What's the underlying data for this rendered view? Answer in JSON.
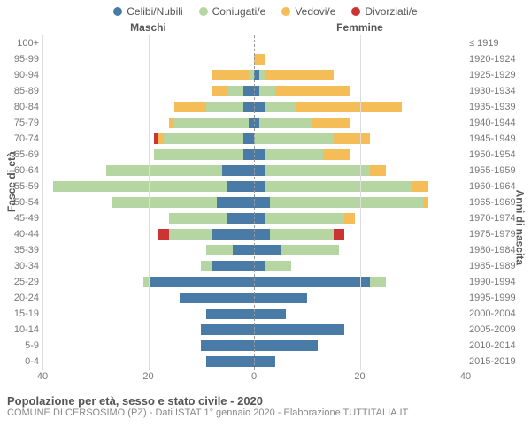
{
  "legend": [
    {
      "label": "Celibi/Nubili",
      "color": "#4a7ba6"
    },
    {
      "label": "Coniugati/e",
      "color": "#b5d6a2"
    },
    {
      "label": "Vedovi/e",
      "color": "#f4bd57"
    },
    {
      "label": "Divorziati/e",
      "color": "#cc3333"
    }
  ],
  "header_male": "Maschi",
  "header_female": "Femmine",
  "y_left_title": "Fasce di età",
  "y_right_title": "Anni di nascita",
  "title": "Popolazione per età, sesso e stato civile - 2020",
  "subtitle": "COMUNE DI CERSOSIMO (PZ) - Dati ISTAT 1° gennaio 2020 - Elaborazione TUTTITALIA.IT",
  "x_max": 40,
  "x_ticks": [
    40,
    20,
    0,
    20,
    40
  ],
  "colors": {
    "celibi": "#4a7ba6",
    "coniugati": "#b5d6a2",
    "vedovi": "#f4bd57",
    "divorziati": "#cc3333",
    "grid": "#dddddd",
    "center": "#999999",
    "text": "#777777"
  },
  "rows": [
    {
      "age": "100+",
      "year": "≤ 1919",
      "m": {
        "c": 0,
        "k": 0,
        "v": 0,
        "d": 0
      },
      "f": {
        "c": 0,
        "k": 0,
        "v": 0,
        "d": 0
      }
    },
    {
      "age": "95-99",
      "year": "1920-1924",
      "m": {
        "c": 0,
        "k": 0,
        "v": 0,
        "d": 0
      },
      "f": {
        "c": 0,
        "k": 0,
        "v": 2,
        "d": 0
      }
    },
    {
      "age": "90-94",
      "year": "1925-1929",
      "m": {
        "c": 0,
        "k": 1,
        "v": 7,
        "d": 0
      },
      "f": {
        "c": 1,
        "k": 1,
        "v": 13,
        "d": 0
      }
    },
    {
      "age": "85-89",
      "year": "1930-1934",
      "m": {
        "c": 2,
        "k": 3,
        "v": 3,
        "d": 0
      },
      "f": {
        "c": 1,
        "k": 3,
        "v": 14,
        "d": 0
      }
    },
    {
      "age": "80-84",
      "year": "1935-1939",
      "m": {
        "c": 2,
        "k": 7,
        "v": 6,
        "d": 0
      },
      "f": {
        "c": 2,
        "k": 6,
        "v": 20,
        "d": 0
      }
    },
    {
      "age": "75-79",
      "year": "1940-1944",
      "m": {
        "c": 1,
        "k": 14,
        "v": 1,
        "d": 0
      },
      "f": {
        "c": 1,
        "k": 10,
        "v": 7,
        "d": 0
      }
    },
    {
      "age": "70-74",
      "year": "1945-1949",
      "m": {
        "c": 2,
        "k": 15,
        "v": 1,
        "d": 1
      },
      "f": {
        "c": 0,
        "k": 15,
        "v": 7,
        "d": 0
      }
    },
    {
      "age": "65-69",
      "year": "1950-1954",
      "m": {
        "c": 2,
        "k": 17,
        "v": 0,
        "d": 0
      },
      "f": {
        "c": 2,
        "k": 11,
        "v": 5,
        "d": 0
      }
    },
    {
      "age": "60-64",
      "year": "1955-1959",
      "m": {
        "c": 6,
        "k": 22,
        "v": 0,
        "d": 0
      },
      "f": {
        "c": 2,
        "k": 20,
        "v": 3,
        "d": 0
      }
    },
    {
      "age": "55-59",
      "year": "1960-1964",
      "m": {
        "c": 5,
        "k": 33,
        "v": 0,
        "d": 0
      },
      "f": {
        "c": 2,
        "k": 28,
        "v": 3,
        "d": 0
      }
    },
    {
      "age": "50-54",
      "year": "1965-1969",
      "m": {
        "c": 7,
        "k": 20,
        "v": 0,
        "d": 0
      },
      "f": {
        "c": 3,
        "k": 29,
        "v": 1,
        "d": 0
      }
    },
    {
      "age": "45-49",
      "year": "1970-1974",
      "m": {
        "c": 5,
        "k": 11,
        "v": 0,
        "d": 0
      },
      "f": {
        "c": 2,
        "k": 15,
        "v": 2,
        "d": 0
      }
    },
    {
      "age": "40-44",
      "year": "1975-1979",
      "m": {
        "c": 8,
        "k": 8,
        "v": 0,
        "d": 2
      },
      "f": {
        "c": 3,
        "k": 12,
        "v": 0,
        "d": 2
      }
    },
    {
      "age": "35-39",
      "year": "1980-1984",
      "m": {
        "c": 4,
        "k": 5,
        "v": 0,
        "d": 0
      },
      "f": {
        "c": 5,
        "k": 11,
        "v": 0,
        "d": 0
      }
    },
    {
      "age": "30-34",
      "year": "1985-1989",
      "m": {
        "c": 8,
        "k": 2,
        "v": 0,
        "d": 0
      },
      "f": {
        "c": 2,
        "k": 5,
        "v": 0,
        "d": 0
      }
    },
    {
      "age": "25-29",
      "year": "1990-1994",
      "m": {
        "c": 20,
        "k": 1,
        "v": 0,
        "d": 0
      },
      "f": {
        "c": 22,
        "k": 3,
        "v": 0,
        "d": 0
      }
    },
    {
      "age": "20-24",
      "year": "1995-1999",
      "m": {
        "c": 14,
        "k": 0,
        "v": 0,
        "d": 0
      },
      "f": {
        "c": 10,
        "k": 0,
        "v": 0,
        "d": 0
      }
    },
    {
      "age": "15-19",
      "year": "2000-2004",
      "m": {
        "c": 9,
        "k": 0,
        "v": 0,
        "d": 0
      },
      "f": {
        "c": 6,
        "k": 0,
        "v": 0,
        "d": 0
      }
    },
    {
      "age": "10-14",
      "year": "2005-2009",
      "m": {
        "c": 10,
        "k": 0,
        "v": 0,
        "d": 0
      },
      "f": {
        "c": 17,
        "k": 0,
        "v": 0,
        "d": 0
      }
    },
    {
      "age": "5-9",
      "year": "2010-2014",
      "m": {
        "c": 10,
        "k": 0,
        "v": 0,
        "d": 0
      },
      "f": {
        "c": 12,
        "k": 0,
        "v": 0,
        "d": 0
      }
    },
    {
      "age": "0-4",
      "year": "2015-2019",
      "m": {
        "c": 9,
        "k": 0,
        "v": 0,
        "d": 0
      },
      "f": {
        "c": 4,
        "k": 0,
        "v": 0,
        "d": 0
      }
    }
  ]
}
